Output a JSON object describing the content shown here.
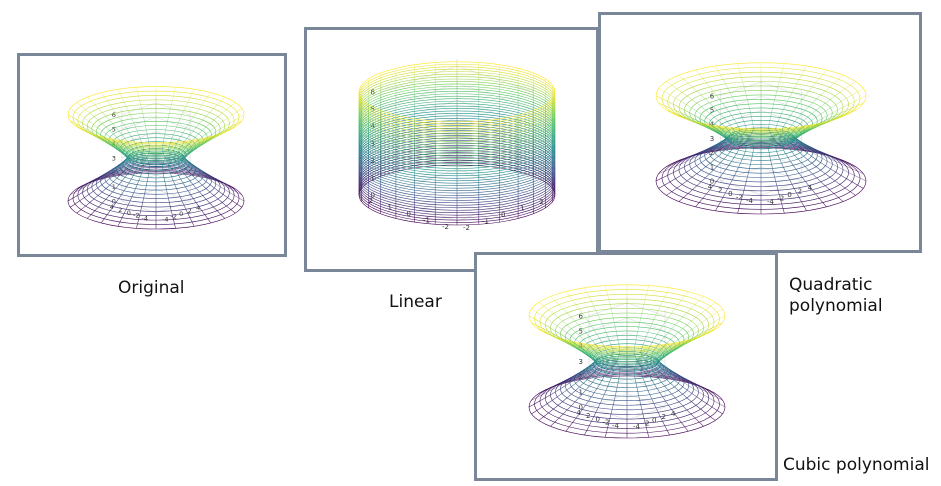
{
  "colormap": [
    "#440154",
    "#3b528b",
    "#21918c",
    "#5ec962",
    "#fde725"
  ],
  "panels": [
    {
      "id": "original",
      "label": "Original",
      "shape": "hyperboloid",
      "z_ticks": [
        "0",
        "1",
        "2",
        "3",
        "4",
        "5",
        "6"
      ],
      "x_ticks": [
        "-4",
        "-2",
        "0",
        "2",
        "4"
      ],
      "y_ticks": [
        "-4",
        "-2",
        "0",
        "2",
        "4"
      ]
    },
    {
      "id": "linear",
      "label": "Linear",
      "shape": "cylinder",
      "z_ticks": [
        "0",
        "1",
        "2",
        "3",
        "4",
        "5",
        "6"
      ],
      "x_ticks": [
        "-2",
        "-1",
        "0",
        "1",
        "2"
      ],
      "y_ticks": [
        "-2",
        "-1",
        "0",
        "1",
        "2"
      ]
    },
    {
      "id": "quadratic",
      "label_lines": [
        "Quadratic",
        "polynomial"
      ],
      "shape": "hyperboloid",
      "z_ticks": [
        "0",
        "1",
        "2",
        "3",
        "4",
        "5",
        "6"
      ],
      "x_ticks": [
        "-4",
        "-2",
        "0",
        "2",
        "4"
      ],
      "y_ticks": [
        "-4",
        "-2",
        "0",
        "2",
        "4"
      ]
    },
    {
      "id": "cubic",
      "label": "Cubic polynomial",
      "shape": "hyperboloid",
      "z_ticks": [
        "0",
        "1",
        "2",
        "3",
        "4",
        "5",
        "6"
      ],
      "x_ticks": [
        "-4",
        "-2",
        "0",
        "2",
        "4"
      ],
      "y_ticks": [
        "-4",
        "-2",
        "0",
        "2",
        "4"
      ]
    }
  ]
}
